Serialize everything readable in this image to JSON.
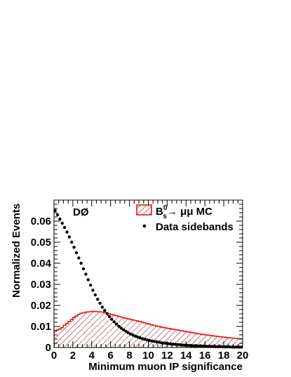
{
  "chart_data": {
    "type": "histogram+scatter",
    "experiment_label": "DØ",
    "xlabel": "Minimum muon IP significance",
    "ylabel": "Normalized Events",
    "xlim": [
      0,
      20
    ],
    "ylim": [
      0,
      0.07
    ],
    "x_ticks": [
      "0",
      "2",
      "4",
      "6",
      "8",
      "10",
      "12",
      "14",
      "16",
      "18",
      "20"
    ],
    "x_tick_values": [
      0,
      2,
      4,
      6,
      8,
      10,
      12,
      14,
      16,
      18,
      20
    ],
    "y_ticks": [
      "0",
      "0.01",
      "0.02",
      "0.03",
      "0.04",
      "0.05",
      "0.06"
    ],
    "y_tick_values": [
      0,
      0.01,
      0.02,
      0.03,
      0.04,
      0.05,
      0.06
    ],
    "legend": {
      "placement": "top-right",
      "mc_prefix": "B",
      "mc_superscript": "0",
      "mc_subscript": "s",
      "mc_suffix": "→ μμ MC",
      "data_label": "Data sidebands"
    },
    "colors": {
      "mc": "#e8161b",
      "data": "#000000"
    },
    "bin_width": 0.25,
    "series": [
      {
        "name": "B_s^0 → μμ MC",
        "kind": "hatched-histogram",
        "bin_edges_start": 0,
        "values": [
          0.008,
          0.0083,
          0.0088,
          0.0094,
          0.0106,
          0.0114,
          0.0124,
          0.0133,
          0.0143,
          0.015,
          0.0157,
          0.0162,
          0.0165,
          0.0168,
          0.0169,
          0.017,
          0.0171,
          0.0171,
          0.017,
          0.017,
          0.0168,
          0.0166,
          0.0163,
          0.016,
          0.0157,
          0.0154,
          0.0151,
          0.0148,
          0.0145,
          0.0142,
          0.0139,
          0.0136,
          0.0133,
          0.0131,
          0.0128,
          0.0126,
          0.0123,
          0.012,
          0.0117,
          0.0114,
          0.0111,
          0.0108,
          0.0105,
          0.0102,
          0.01,
          0.0097,
          0.0095,
          0.0093,
          0.0091,
          0.0089,
          0.0087,
          0.0085,
          0.0083,
          0.0081,
          0.0079,
          0.0077,
          0.0075,
          0.0073,
          0.0071,
          0.0069,
          0.0067,
          0.0065,
          0.0064,
          0.0062,
          0.006,
          0.0059,
          0.0057,
          0.0056,
          0.0054,
          0.0053,
          0.0051,
          0.005,
          0.0049,
          0.0047,
          0.0046,
          0.0045,
          0.0044,
          0.0043,
          0.0042,
          0.0041
        ]
      },
      {
        "name": "Data sidebands",
        "kind": "points",
        "x_start": 0.125,
        "values": [
          0.065,
          0.063,
          0.061,
          0.059,
          0.057,
          0.0548,
          0.0525,
          0.05,
          0.0476,
          0.045,
          0.0425,
          0.04,
          0.0374,
          0.0348,
          0.0322,
          0.0296,
          0.0272,
          0.025,
          0.0229,
          0.021,
          0.0192,
          0.0176,
          0.0161,
          0.0147,
          0.0134,
          0.0122,
          0.0111,
          0.0101,
          0.0092,
          0.0084,
          0.0077,
          0.007,
          0.0064,
          0.0059,
          0.0054,
          0.005,
          0.0046,
          0.0042,
          0.0039,
          0.0036,
          0.0033,
          0.0031,
          0.0029,
          0.0027,
          0.0025,
          0.0023,
          0.0021,
          0.002,
          0.0018,
          0.0017,
          0.0016,
          0.0015,
          0.0014,
          0.0013,
          0.0012,
          0.0011,
          0.001,
          0.001,
          0.0009,
          0.0008,
          0.0008,
          0.0007,
          0.0007,
          0.0006,
          0.0006,
          0.0005,
          0.0005,
          0.0005,
          0.0004,
          0.0004,
          0.0004,
          0.0003,
          0.0003,
          0.0003,
          0.0003,
          0.0002,
          0.0002,
          0.0002,
          0.0002,
          0.0002
        ]
      }
    ]
  }
}
